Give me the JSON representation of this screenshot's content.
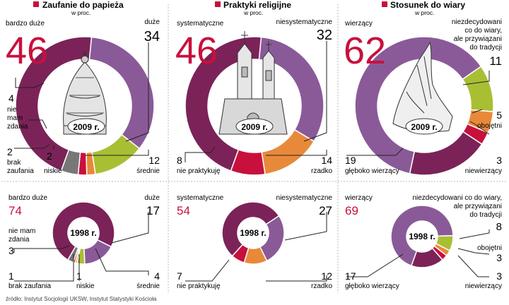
{
  "colors": {
    "purple_dark": "#7b2358",
    "purple_mid": "#8a5a98",
    "purple_light": "#a27db0",
    "green": "#a8bf33",
    "orange": "#e8893a",
    "red": "#c8103d",
    "gray": "#777777",
    "title_red": "#c8103d",
    "big_number": "#c8103d"
  },
  "source": "źródło: Instytut Socjologii UKSW, Instytut Statystyki Kościoła",
  "panels": [
    {
      "title": "Zaufanie do papieża",
      "subtitle": "w proc.",
      "icon": "papal-tiara-icon"
    },
    {
      "title": "Praktyki religijne",
      "subtitle": "w proc.",
      "icon": "church-icon"
    },
    {
      "title": "Stosunek do wiary",
      "subtitle": "w proc.",
      "icon": "praying-hands-icon"
    }
  ],
  "chart_data": [
    {
      "type": "pie",
      "title": "Zaufanie do papieża",
      "center_label": "2009 r.",
      "series": [
        {
          "label": "bardzo duże",
          "value": 46,
          "color": "#7b2358"
        },
        {
          "label": "duże",
          "value": 34,
          "color": "#8a5a98"
        },
        {
          "label": "średnie",
          "value": 12,
          "color": "#a8bf33"
        },
        {
          "label": "niskie",
          "value": 2,
          "color": "#e8893a"
        },
        {
          "label": "brak zaufania",
          "value": 2,
          "color": "#c8103d"
        },
        {
          "label": "nie mam zdania",
          "value": 4,
          "color": "#777777"
        }
      ]
    },
    {
      "type": "pie",
      "title": "Praktyki religijne",
      "center_label": "2009 r.",
      "series": [
        {
          "label": "systematyczne",
          "value": 46,
          "color": "#7b2358"
        },
        {
          "label": "niesystematyczne",
          "value": 32,
          "color": "#8a5a98"
        },
        {
          "label": "rzadko",
          "value": 14,
          "color": "#e8893a"
        },
        {
          "label": "nie praktykuję",
          "value": 8,
          "color": "#c8103d"
        }
      ]
    },
    {
      "type": "pie",
      "title": "Stosunek do wiary",
      "center_label": "2009 r.",
      "series": [
        {
          "label": "wierzący",
          "value": 62,
          "color": "#8a5a98"
        },
        {
          "label": "niezdecydowani co do wiary, ale przywiązani do tradycji",
          "value": 11,
          "color": "#a8bf33"
        },
        {
          "label": "obojętni",
          "value": 5,
          "color": "#e8893a"
        },
        {
          "label": "niewierzący",
          "value": 3,
          "color": "#c8103d"
        },
        {
          "label": "głęboko wierzący",
          "value": 19,
          "color": "#7b2358"
        }
      ]
    },
    {
      "type": "pie",
      "title": "Zaufanie do papieża",
      "center_label": "1998 r.",
      "series": [
        {
          "label": "bardzo duże",
          "value": 74,
          "color": "#7b2358"
        },
        {
          "label": "duże",
          "value": 17,
          "color": "#8a5a98"
        },
        {
          "label": "średnie",
          "value": 4,
          "color": "#a8bf33"
        },
        {
          "label": "niskie",
          "value": 1,
          "color": "#e8893a"
        },
        {
          "label": "brak zaufania",
          "value": 1,
          "color": "#c8103d"
        },
        {
          "label": "nie mam zdania",
          "value": 3,
          "color": "#777777"
        }
      ]
    },
    {
      "type": "pie",
      "title": "Praktyki religijne",
      "center_label": "1998 r.",
      "series": [
        {
          "label": "systematyczne",
          "value": 54,
          "color": "#7b2358"
        },
        {
          "label": "niesystematyczne",
          "value": 27,
          "color": "#8a5a98"
        },
        {
          "label": "rzadko",
          "value": 12,
          "color": "#e8893a"
        },
        {
          "label": "nie praktykuję",
          "value": 7,
          "color": "#c8103d"
        }
      ]
    },
    {
      "type": "pie",
      "title": "Stosunek do wiary",
      "center_label": "1998 r.",
      "series": [
        {
          "label": "wierzący",
          "value": 69,
          "color": "#8a5a98"
        },
        {
          "label": "niezdecydowani co do wiary, ale przywiązani do tradycji",
          "value": 8,
          "color": "#a8bf33"
        },
        {
          "label": "obojętni",
          "value": 3,
          "color": "#e8893a"
        },
        {
          "label": "niewierzący",
          "value": 3,
          "color": "#c8103d"
        },
        {
          "label": "głęboko wierzący",
          "value": 17,
          "color": "#7b2358"
        }
      ]
    }
  ],
  "labels": {
    "p1_2009": {
      "big": "46",
      "bardzo_duze": "bardzo duże",
      "duze": "duże",
      "duze_v": "34",
      "nmz_v": "4",
      "nmz_1": "nie",
      "nmz_2": "mam",
      "nmz_3": "zdania",
      "brak_v": "2",
      "brak_1": "brak",
      "brak_2": "zaufania",
      "niskie_v": "2",
      "niskie": "niskie",
      "srednie_v": "12",
      "srednie": "średnie"
    },
    "p2_2009": {
      "big": "46",
      "syst": "systematyczne",
      "niesyst": "niesystematyczne",
      "niesyst_v": "32",
      "np_v": "8",
      "np": "nie praktykuję",
      "rzadko_v": "14",
      "rzadko": "rzadko"
    },
    "p3_2009": {
      "big": "62",
      "wierzacy": "wierzący",
      "niezd_1": "niezdecydowani",
      "niezd_2": "co do wiary,",
      "niezd_3": "ale przywiązani",
      "niezd_4": "do tradycji",
      "niezd_v": "11",
      "obo_v": "5",
      "obo": "obojętni",
      "gleb_v": "19",
      "gleb": "głęboko wierzący",
      "niew_v": "3",
      "niew": "niewierzący"
    },
    "p1_1998": {
      "big": "74",
      "bardzo_duze": "bardzo duże",
      "duze": "duże",
      "duze_v": "17",
      "nmz_1": "nie mam",
      "nmz_2": "zdania",
      "nmz_v": "3",
      "brak_v": "1",
      "brak": "brak zaufania",
      "niskie_v": "1",
      "niskie": "niskie",
      "srednie_v": "4",
      "srednie": "średnie"
    },
    "p2_1998": {
      "big": "54",
      "syst": "systematyczne",
      "niesyst": "niesystematyczne",
      "niesyst_v": "27",
      "np_v": "7",
      "np": "nie praktykuję",
      "rzadko_v": "12",
      "rzadko": "rzadko"
    },
    "p3_1998": {
      "big": "69",
      "wierzacy": "wierzący",
      "niezd_1": "niezdecydowani co do wiary,",
      "niezd_2": "ale przywiązani",
      "niezd_3": "do tradycji",
      "niezd_v": "8",
      "obo": "obojętni",
      "obo_v": "3",
      "gleb_v": "17",
      "gleb": "głęboko wierzący",
      "niew_v": "3",
      "niew": "niewierzący"
    }
  }
}
